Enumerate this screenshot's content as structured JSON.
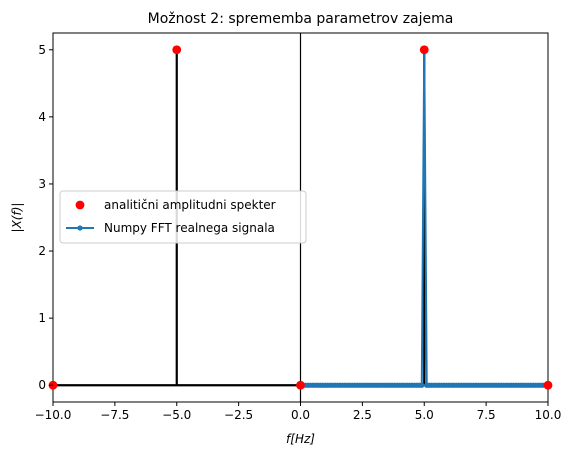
{
  "chart_data": {
    "type": "line",
    "title": "Možnost 2: sprememba parametrov zajema",
    "xlabel": "f[Hz]",
    "ylabel": "|X(f)|",
    "xlim": [
      -10,
      10
    ],
    "ylim": [
      -0.25,
      5.25
    ],
    "xticks": [
      -10.0,
      -7.5,
      -5.0,
      -2.5,
      0.0,
      2.5,
      5.0,
      7.5,
      10.0
    ],
    "xtick_labels": [
      "−10.0",
      "−7.5",
      "−5.0",
      "−2.5",
      "0.0",
      "2.5",
      "5.0",
      "7.5",
      "10.0"
    ],
    "yticks": [
      0,
      1,
      2,
      3,
      4,
      5
    ],
    "ytick_labels": [
      "0",
      "1",
      "2",
      "3",
      "4",
      "5"
    ],
    "grid": false,
    "legend_position": "center-left",
    "series": [
      {
        "name": "analitični amplitudni spekter",
        "kind": "points",
        "color": "#ff0000",
        "x": [
          -10,
          -5,
          0,
          5,
          10
        ],
        "y": [
          0,
          5,
          0,
          5,
          0
        ]
      },
      {
        "name": "Numpy FFT realnega signala",
        "kind": "line-with-markers",
        "color": "#1f77b4",
        "x_start": 0,
        "x_end": 10,
        "x_step": 0.1,
        "peak_x": 5,
        "peak_y": 5
      }
    ],
    "analytic_stems": {
      "color": "#000000",
      "x": [
        -10,
        -5,
        0,
        5,
        10
      ],
      "y": [
        0,
        5,
        0,
        5,
        0
      ]
    },
    "vertical_line_x": 0
  }
}
